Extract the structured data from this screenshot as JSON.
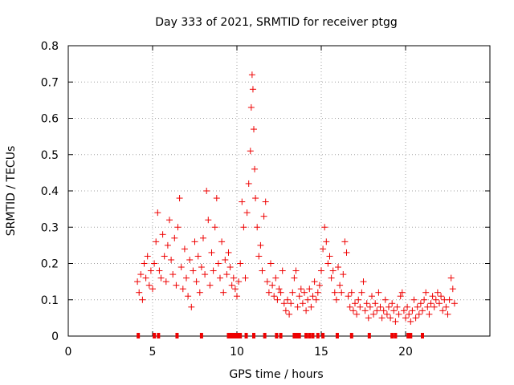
{
  "chart_data": {
    "type": "scatter",
    "title": "Day 333 of 2021, SRMTID for receiver ptgg",
    "xlabel": "GPS time / hours",
    "ylabel": "SRMTID / TECUs",
    "xlim": [
      0,
      25
    ],
    "ylim": [
      0,
      0.8
    ],
    "xticks": [
      0,
      5,
      10,
      15,
      20
    ],
    "yticks": [
      0,
      0.1,
      0.2,
      0.3,
      0.4,
      0.5,
      0.6,
      0.7,
      0.8
    ],
    "xtick_labels": [
      "0",
      "5",
      "10",
      "15",
      "20"
    ],
    "ytick_labels": [
      "0",
      "0.1",
      "0.2",
      "0.3",
      "0.4",
      "0.5",
      "0.6",
      "0.7",
      "0.8"
    ],
    "grid": true,
    "marker": "plus",
    "color": "#ee0000",
    "series": [
      {
        "name": "SRMTID",
        "points": [
          [
            4.1,
            0.15
          ],
          [
            4.2,
            0.12
          ],
          [
            4.3,
            0.17
          ],
          [
            4.4,
            0.1
          ],
          [
            4.5,
            0.2
          ],
          [
            4.6,
            0.16
          ],
          [
            4.7,
            0.22
          ],
          [
            4.8,
            0.14
          ],
          [
            4.9,
            0.18
          ],
          [
            5.0,
            0.13
          ],
          [
            5.1,
            0.2
          ],
          [
            5.2,
            0.26
          ],
          [
            5.3,
            0.34
          ],
          [
            5.4,
            0.18
          ],
          [
            5.5,
            0.16
          ],
          [
            5.6,
            0.28
          ],
          [
            5.7,
            0.22
          ],
          [
            5.8,
            0.15
          ],
          [
            5.9,
            0.25
          ],
          [
            6.0,
            0.32
          ],
          [
            6.1,
            0.21
          ],
          [
            6.2,
            0.17
          ],
          [
            6.3,
            0.27
          ],
          [
            6.4,
            0.14
          ],
          [
            6.5,
            0.3
          ],
          [
            6.6,
            0.38
          ],
          [
            6.7,
            0.19
          ],
          [
            6.8,
            0.13
          ],
          [
            6.9,
            0.24
          ],
          [
            7.0,
            0.16
          ],
          [
            7.1,
            0.11
          ],
          [
            7.2,
            0.21
          ],
          [
            7.3,
            0.08
          ],
          [
            7.4,
            0.18
          ],
          [
            7.5,
            0.26
          ],
          [
            7.6,
            0.15
          ],
          [
            7.7,
            0.22
          ],
          [
            7.8,
            0.12
          ],
          [
            7.9,
            0.19
          ],
          [
            8.0,
            0.27
          ],
          [
            8.1,
            0.17
          ],
          [
            8.2,
            0.4
          ],
          [
            8.3,
            0.32
          ],
          [
            8.4,
            0.14
          ],
          [
            8.5,
            0.23
          ],
          [
            8.6,
            0.18
          ],
          [
            8.7,
            0.3
          ],
          [
            8.8,
            0.38
          ],
          [
            8.9,
            0.2
          ],
          [
            9.0,
            0.16
          ],
          [
            9.1,
            0.26
          ],
          [
            9.2,
            0.12
          ],
          [
            9.3,
            0.21
          ],
          [
            9.4,
            0.17
          ],
          [
            9.5,
            0.23
          ],
          [
            9.6,
            0.19
          ],
          [
            9.7,
            0.14
          ],
          [
            9.8,
            0.16
          ],
          [
            9.9,
            0.13
          ],
          [
            10.0,
            0.11
          ],
          [
            10.1,
            0.15
          ],
          [
            10.2,
            0.2
          ],
          [
            10.3,
            0.37
          ],
          [
            10.4,
            0.3
          ],
          [
            10.5,
            0.16
          ],
          [
            10.6,
            0.34
          ],
          [
            10.7,
            0.42
          ],
          [
            10.8,
            0.51
          ],
          [
            10.85,
            0.63
          ],
          [
            10.9,
            0.72
          ],
          [
            10.95,
            0.68
          ],
          [
            11.0,
            0.57
          ],
          [
            11.05,
            0.46
          ],
          [
            11.1,
            0.38
          ],
          [
            11.2,
            0.3
          ],
          [
            11.3,
            0.22
          ],
          [
            11.4,
            0.25
          ],
          [
            11.5,
            0.18
          ],
          [
            11.6,
            0.33
          ],
          [
            11.7,
            0.37
          ],
          [
            11.8,
            0.15
          ],
          [
            11.9,
            0.12
          ],
          [
            12.0,
            0.2
          ],
          [
            12.1,
            0.14
          ],
          [
            12.2,
            0.11
          ],
          [
            12.3,
            0.16
          ],
          [
            12.4,
            0.1
          ],
          [
            12.5,
            0.13
          ],
          [
            12.6,
            0.12
          ],
          [
            12.7,
            0.18
          ],
          [
            12.8,
            0.09
          ],
          [
            12.9,
            0.07
          ],
          [
            13.0,
            0.1
          ],
          [
            13.1,
            0.06
          ],
          [
            13.2,
            0.09
          ],
          [
            13.3,
            0.12
          ],
          [
            13.4,
            0.16
          ],
          [
            13.5,
            0.18
          ],
          [
            13.6,
            0.08
          ],
          [
            13.7,
            0.11
          ],
          [
            13.8,
            0.13
          ],
          [
            13.9,
            0.09
          ],
          [
            14.0,
            0.12
          ],
          [
            14.1,
            0.07
          ],
          [
            14.2,
            0.1
          ],
          [
            14.3,
            0.13
          ],
          [
            14.4,
            0.08
          ],
          [
            14.5,
            0.11
          ],
          [
            14.6,
            0.15
          ],
          [
            14.7,
            0.1
          ],
          [
            14.8,
            0.12
          ],
          [
            14.9,
            0.14
          ],
          [
            15.0,
            0.18
          ],
          [
            15.1,
            0.24
          ],
          [
            15.2,
            0.3
          ],
          [
            15.3,
            0.26
          ],
          [
            15.4,
            0.2
          ],
          [
            15.5,
            0.22
          ],
          [
            15.6,
            0.16
          ],
          [
            15.7,
            0.18
          ],
          [
            15.8,
            0.12
          ],
          [
            15.9,
            0.1
          ],
          [
            16.0,
            0.19
          ],
          [
            16.1,
            0.14
          ],
          [
            16.2,
            0.12
          ],
          [
            16.3,
            0.17
          ],
          [
            16.4,
            0.26
          ],
          [
            16.5,
            0.23
          ],
          [
            16.6,
            0.11
          ],
          [
            16.7,
            0.08
          ],
          [
            16.8,
            0.12
          ],
          [
            16.9,
            0.07
          ],
          [
            17.0,
            0.09
          ],
          [
            17.1,
            0.06
          ],
          [
            17.2,
            0.1
          ],
          [
            17.3,
            0.08
          ],
          [
            17.4,
            0.12
          ],
          [
            17.5,
            0.15
          ],
          [
            17.6,
            0.07
          ],
          [
            17.7,
            0.09
          ],
          [
            17.8,
            0.05
          ],
          [
            17.9,
            0.08
          ],
          [
            18.0,
            0.11
          ],
          [
            18.1,
            0.06
          ],
          [
            18.2,
            0.09
          ],
          [
            18.3,
            0.07
          ],
          [
            18.4,
            0.12
          ],
          [
            18.5,
            0.08
          ],
          [
            18.6,
            0.05
          ],
          [
            18.7,
            0.07
          ],
          [
            18.8,
            0.1
          ],
          [
            18.9,
            0.06
          ],
          [
            19.0,
            0.08
          ],
          [
            19.1,
            0.05
          ],
          [
            19.2,
            0.09
          ],
          [
            19.3,
            0.07
          ],
          [
            19.4,
            0.04
          ],
          [
            19.5,
            0.08
          ],
          [
            19.6,
            0.06
          ],
          [
            19.7,
            0.11
          ],
          [
            19.8,
            0.12
          ],
          [
            19.9,
            0.07
          ],
          [
            20.0,
            0.05
          ],
          [
            20.1,
            0.08
          ],
          [
            20.2,
            0.06
          ],
          [
            20.3,
            0.04
          ],
          [
            20.4,
            0.07
          ],
          [
            20.5,
            0.1
          ],
          [
            20.6,
            0.05
          ],
          [
            20.7,
            0.08
          ],
          [
            20.8,
            0.06
          ],
          [
            20.9,
            0.09
          ],
          [
            21.0,
            0.07
          ],
          [
            21.1,
            0.1
          ],
          [
            21.2,
            0.12
          ],
          [
            21.3,
            0.08
          ],
          [
            21.4,
            0.06
          ],
          [
            21.5,
            0.09
          ],
          [
            21.6,
            0.11
          ],
          [
            21.7,
            0.08
          ],
          [
            21.8,
            0.1
          ],
          [
            21.9,
            0.12
          ],
          [
            22.0,
            0.09
          ],
          [
            22.1,
            0.11
          ],
          [
            22.2,
            0.07
          ],
          [
            22.3,
            0.1
          ],
          [
            22.4,
            0.08
          ],
          [
            22.5,
            0.06
          ],
          [
            22.6,
            0.1
          ],
          [
            22.7,
            0.16
          ],
          [
            22.8,
            0.13
          ],
          [
            22.9,
            0.09
          ]
        ]
      }
    ],
    "gap_markers_x": [
      4.15,
      5.1,
      5.35,
      6.45,
      7.9,
      9.5,
      9.6,
      9.75,
      9.9,
      10.0,
      10.1,
      10.2,
      10.55,
      11.0,
      11.65,
      12.35,
      12.6,
      13.4,
      13.55,
      13.7,
      14.1,
      14.3,
      14.5,
      14.8,
      15.1,
      15.95,
      16.8,
      17.85,
      19.2,
      19.4,
      20.15,
      20.3,
      21.0
    ]
  }
}
